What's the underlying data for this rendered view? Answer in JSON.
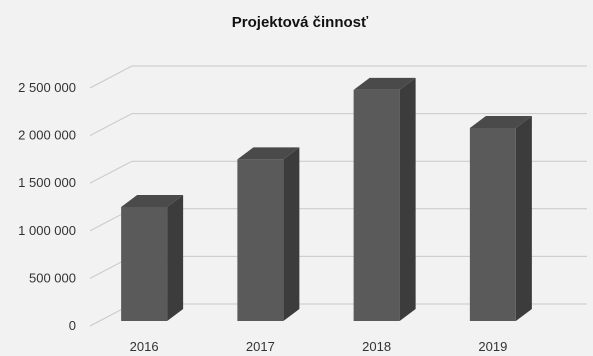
{
  "chart_data": {
    "type": "bar",
    "title": "Projektová činnosť",
    "categories": [
      "2016",
      "2017",
      "2018",
      "2019"
    ],
    "values": [
      1250000,
      1750000,
      2480000,
      2080000
    ],
    "ylim": [
      0,
      2500000
    ],
    "yticks": [
      0,
      500000,
      1000000,
      1500000,
      2000000,
      2500000
    ],
    "ytick_labels": [
      "0",
      "500 000",
      "1 000 000",
      "1 500 000",
      "2 000 000",
      "2 500 000"
    ],
    "xlabel": "",
    "ylabel": "",
    "grid": true,
    "legend": "none",
    "colors": {
      "bar_front": "#5a5a5a",
      "bar_side": "#3c3c3c",
      "bar_top": "#4a4a4a",
      "grid": "#c8c8c8",
      "background": "#f2f2f2"
    }
  }
}
